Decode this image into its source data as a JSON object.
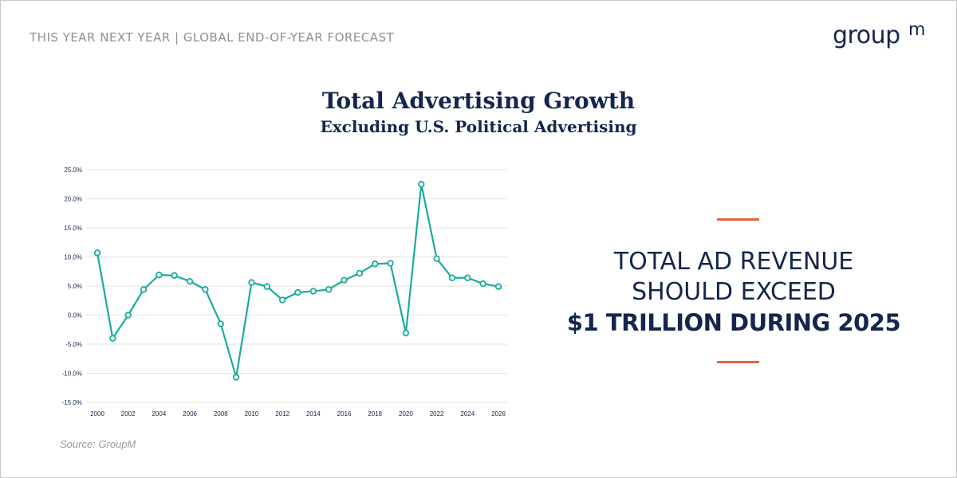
{
  "header": {
    "title": "THIS YEAR NEXT YEAR | GLOBAL END-OF-YEAR FORECAST",
    "logo_text": "groupm"
  },
  "callout": {
    "line1": "TOTAL AD REVENUE",
    "line2": "SHOULD EXCEED",
    "line3": "$1 TRILLION DURING 2025"
  },
  "source": "Source: GroupM",
  "colors": {
    "navy": "#14264d",
    "teal": "#1aaba0",
    "accent": "#e2673c",
    "grid": "#e2e2e2",
    "header_gray": "#8e8e8e"
  },
  "chart_data": {
    "type": "line",
    "title": "Total Advertising Growth",
    "subtitle": "Excluding U.S. Political Advertising",
    "x": [
      2000,
      2001,
      2002,
      2003,
      2004,
      2005,
      2006,
      2007,
      2008,
      2009,
      2010,
      2011,
      2012,
      2013,
      2014,
      2015,
      2016,
      2017,
      2018,
      2019,
      2020,
      2021,
      2022,
      2023,
      2024,
      2025,
      2026
    ],
    "x_tick_labels": [
      "2000",
      "2002",
      "2004",
      "2006",
      "2008",
      "2010",
      "2012",
      "2014",
      "2016",
      "2018",
      "2020",
      "2022",
      "2024",
      "2026"
    ],
    "series": [
      {
        "values": [
          10.7,
          -4.0,
          0.0,
          4.4,
          6.9,
          6.8,
          5.8,
          4.4,
          -1.5,
          -10.7,
          5.6,
          4.9,
          2.6,
          3.9,
          4.1,
          4.4,
          6.0,
          7.2,
          8.8,
          8.9,
          -3.1,
          22.5,
          9.7,
          6.4,
          6.4,
          5.4,
          4.9
        ]
      }
    ],
    "y_tick_labels": [
      "25.0%",
      "20.0%",
      "15.0%",
      "10.0%",
      "5.0%",
      "0.0%",
      "-5.0%",
      "-10.0%",
      "-15.0%"
    ],
    "y_ticks": [
      25,
      20,
      15,
      10,
      5,
      0,
      -5,
      -10,
      -15
    ],
    "ylim": [
      -15,
      25
    ],
    "xlim": [
      2000,
      2026
    ],
    "grid": true,
    "legend": "none"
  }
}
